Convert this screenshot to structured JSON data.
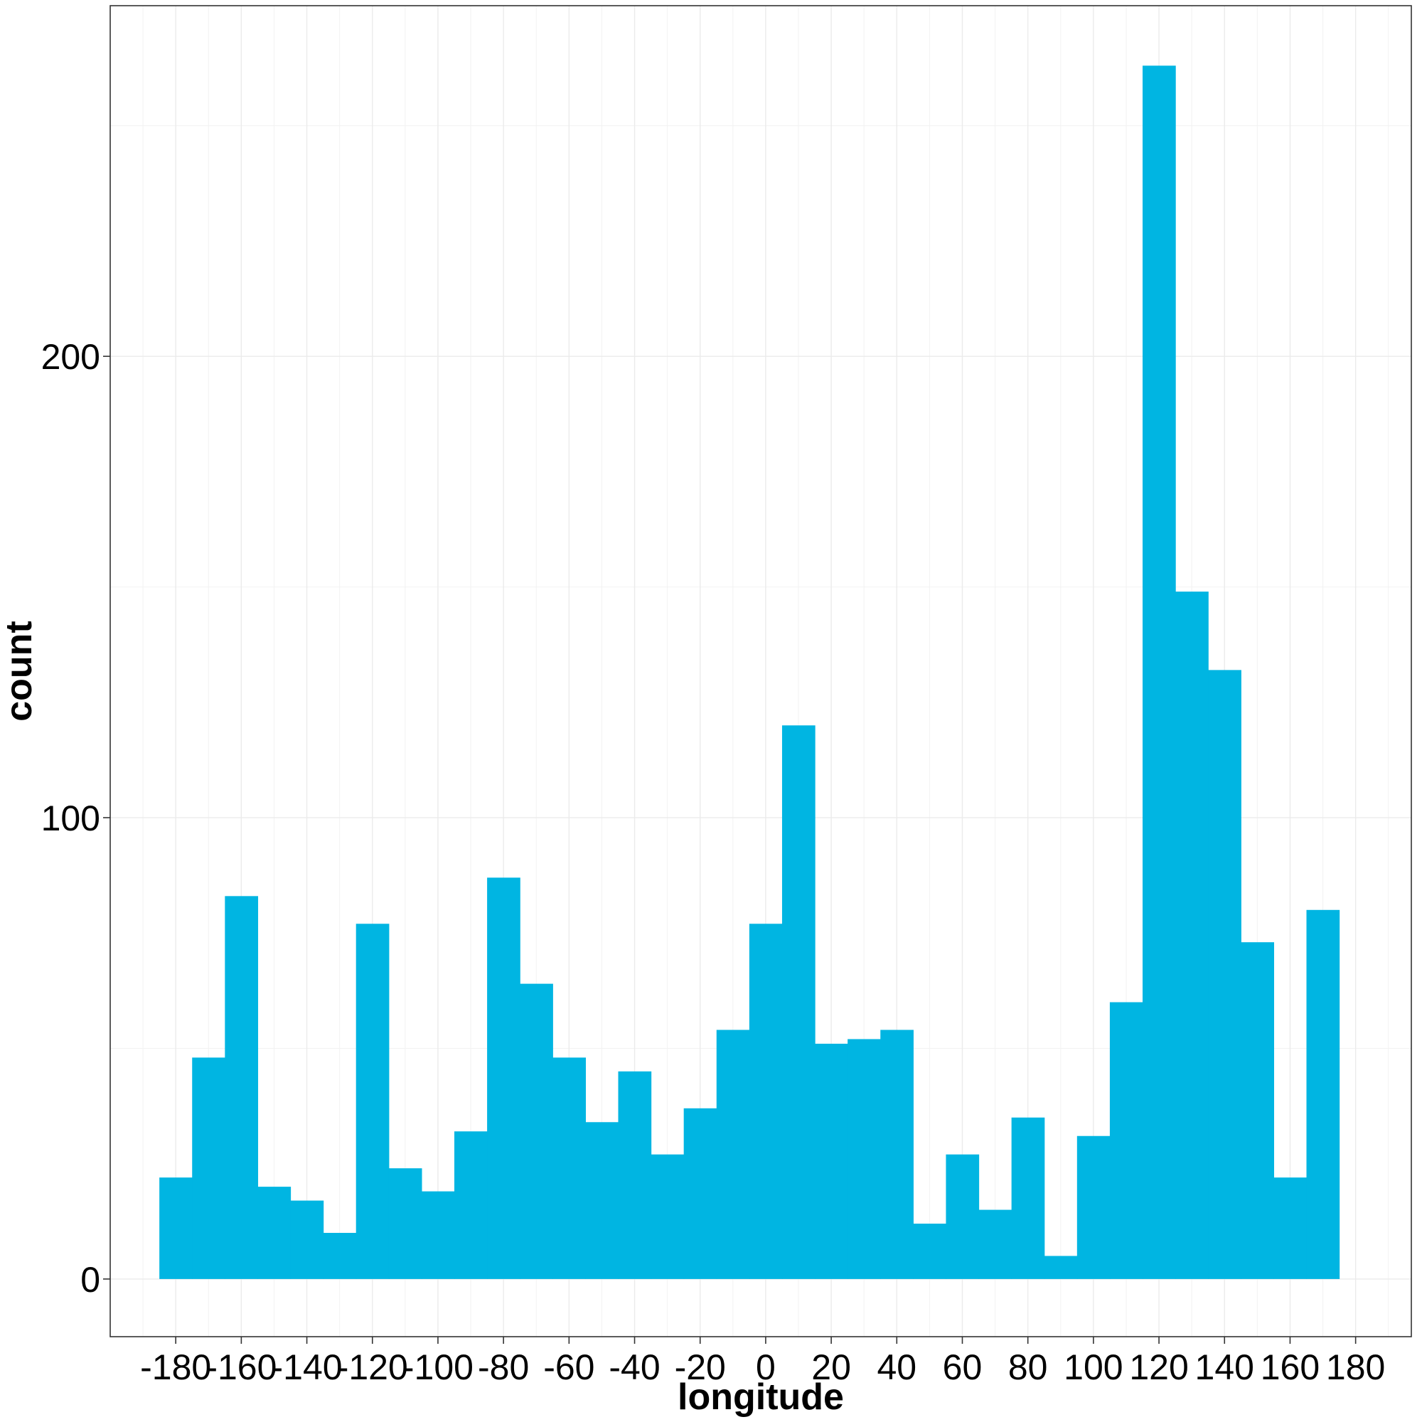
{
  "chart_data": {
    "type": "bar",
    "subtype": "histogram",
    "xlabel": "longitude",
    "ylabel": "count",
    "x_ticks": [
      -180,
      -160,
      -140,
      -120,
      -100,
      -80,
      -60,
      -40,
      -20,
      0,
      20,
      40,
      60,
      80,
      100,
      120,
      140,
      160,
      180
    ],
    "x_tick_labels": [
      "-180",
      "-160",
      "-140",
      "-120",
      "-100",
      "-80",
      "-60",
      "-40",
      "-20",
      "0",
      "20",
      "40",
      "60",
      "80",
      "100",
      "120",
      "140",
      "160",
      "180"
    ],
    "y_ticks": [
      0,
      100,
      200
    ],
    "y_tick_labels": [
      "0",
      "100",
      "200"
    ],
    "xlim": [
      -200,
      197
    ],
    "ylim": [
      -12.5,
      276
    ],
    "bin_width": 10,
    "bin_starts": [
      -185,
      -175,
      -165,
      -155,
      -145,
      -135,
      -125,
      -115,
      -105,
      -95,
      -85,
      -75,
      -65,
      -55,
      -45,
      -35,
      -25,
      -15,
      -5,
      5,
      15,
      25,
      35,
      45,
      55,
      65,
      75,
      85,
      95,
      105,
      115,
      125,
      135,
      145,
      155,
      165
    ],
    "values": [
      22,
      48,
      83,
      20,
      17,
      10,
      77,
      24,
      19,
      32,
      87,
      64,
      48,
      34,
      45,
      27,
      37,
      54,
      77,
      120,
      51,
      52,
      54,
      12,
      27,
      15,
      35,
      5,
      31,
      60,
      263,
      149,
      132,
      73,
      22,
      80
    ],
    "bar_color": "#00B5E2",
    "grid": true,
    "legend": "none"
  }
}
